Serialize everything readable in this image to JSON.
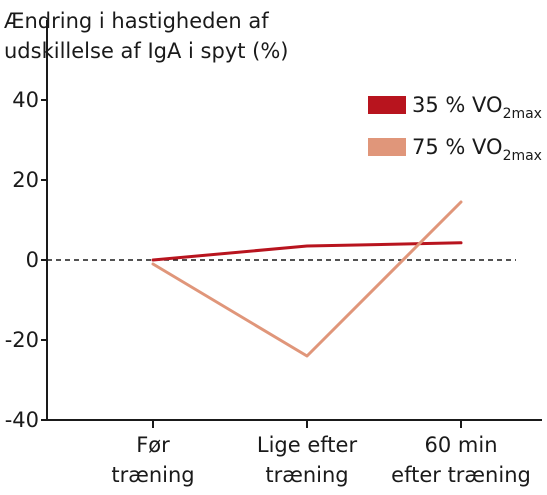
{
  "chart_data": {
    "type": "line",
    "title_lines": [
      "Ændring i hastigheden af",
      "udskillelse af IgA i spyt (%)"
    ],
    "xlabel": "",
    "ylabel": "",
    "ylim": [
      -40,
      40
    ],
    "yticks": [
      -40,
      -20,
      0,
      20,
      40
    ],
    "ytick_labels": [
      "-40",
      "-20",
      "0",
      "20",
      "40"
    ],
    "categories": [
      [
        "Før",
        "træning"
      ],
      [
        "Lige efter",
        "træning"
      ],
      [
        "60 min",
        "efter træning"
      ]
    ],
    "grid": false,
    "zero_line": "dashed",
    "legend_position": "top-right",
    "series": [
      {
        "label_main": "35 % VO",
        "label_sub": "2max",
        "color": "#b8141e",
        "values": [
          0,
          3.5,
          4.3
        ]
      },
      {
        "label_main": "75 % VO",
        "label_sub": "2max",
        "color": "#e0967a",
        "values": [
          -1,
          -24,
          14.5
        ]
      }
    ]
  }
}
